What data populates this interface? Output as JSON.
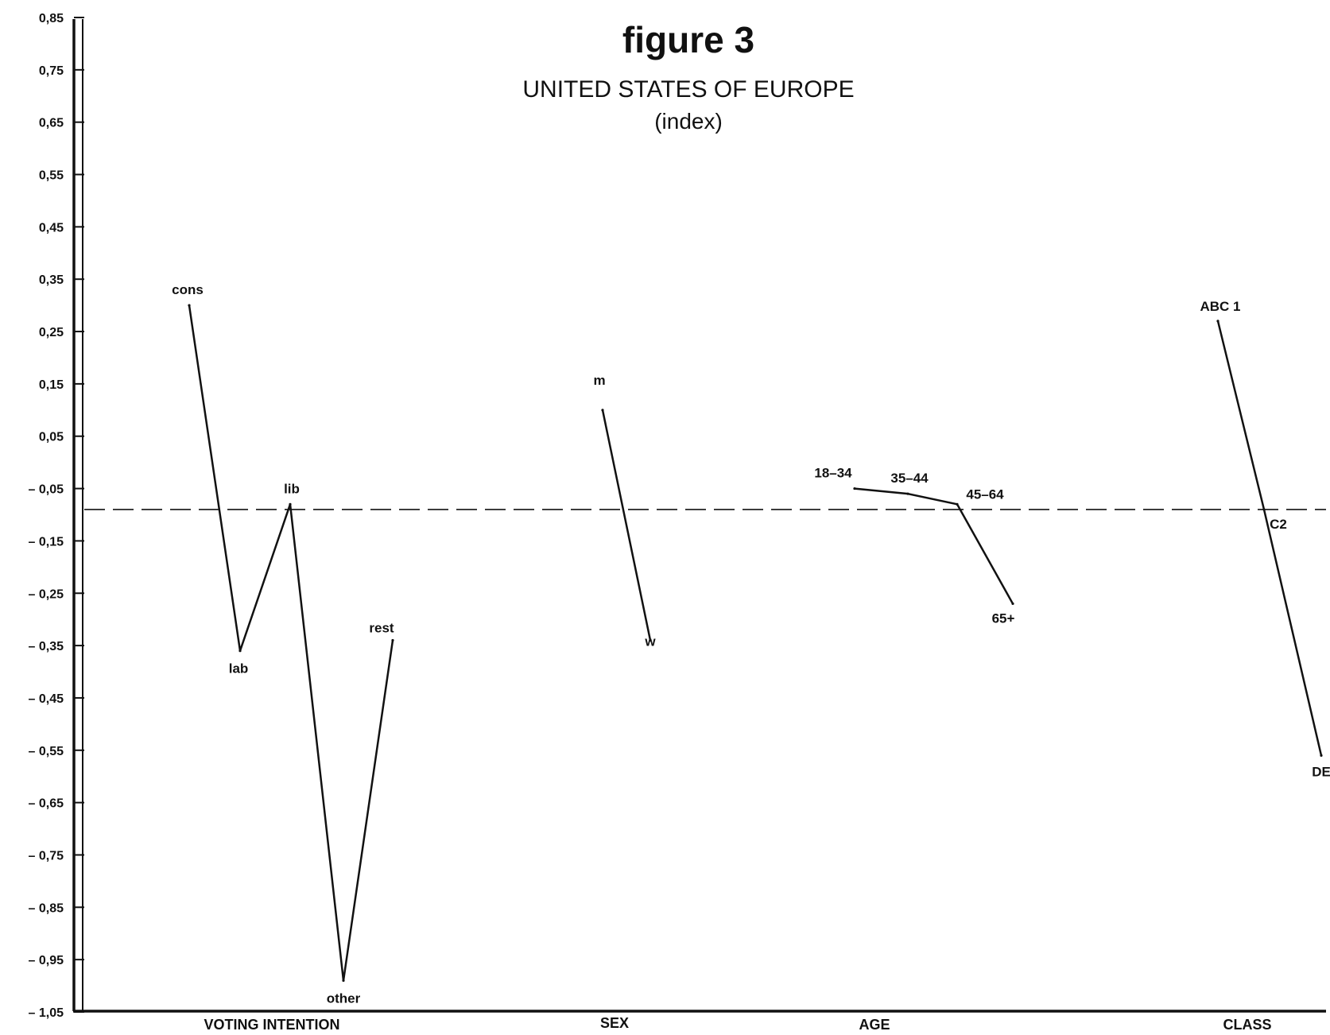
{
  "chart_data": {
    "type": "line",
    "title": "figure 3",
    "subtitle": "UNITED STATES OF EUROPE",
    "subtitle_note": "(index)",
    "y_ticks": [
      "0,85",
      "0,75",
      "0,65",
      "0,55",
      "0,45",
      "0,35",
      "0,25",
      "0,15",
      "0,05",
      "– 0,05",
      "– 0,15",
      "– 0,25",
      "– 0,35",
      "– 0,45",
      "– 0,55",
      "– 0,65",
      "– 0,75",
      "– 0,85",
      "– 0,95",
      "– 1,05"
    ],
    "y_tick_values": [
      0.85,
      0.75,
      0.65,
      0.55,
      0.45,
      0.35,
      0.25,
      0.15,
      0.05,
      -0.05,
      -0.15,
      -0.25,
      -0.35,
      -0.45,
      -0.55,
      -0.65,
      -0.75,
      -0.85,
      -0.95,
      -1.05
    ],
    "ylim": [
      -1.05,
      0.85
    ],
    "reference_line": -0.09,
    "grid": false,
    "legend": "none",
    "groups": [
      {
        "name": "VOTING INTENTION",
        "points": [
          {
            "label": "cons",
            "y": 0.3
          },
          {
            "label": "lab",
            "y": -0.36
          },
          {
            "label": "lib",
            "y": -0.08
          },
          {
            "label": "other",
            "y": -0.99
          },
          {
            "label": "rest",
            "y": -0.34
          }
        ]
      },
      {
        "name": "SEX",
        "points": [
          {
            "label": "m",
            "y": 0.1
          },
          {
            "label": "w",
            "y": -0.34
          }
        ]
      },
      {
        "name": "AGE",
        "points": [
          {
            "label": "18–34",
            "y": -0.05
          },
          {
            "label": "35–44",
            "y": -0.06
          },
          {
            "label": "45–64",
            "y": -0.08
          },
          {
            "label": "65+",
            "y": -0.27
          }
        ]
      },
      {
        "name": "CLASS",
        "points": [
          {
            "label": "ABC 1",
            "y": 0.27
          },
          {
            "label": "C2",
            "y": -0.09
          },
          {
            "label": "DE",
            "y": -0.56
          }
        ]
      }
    ]
  }
}
